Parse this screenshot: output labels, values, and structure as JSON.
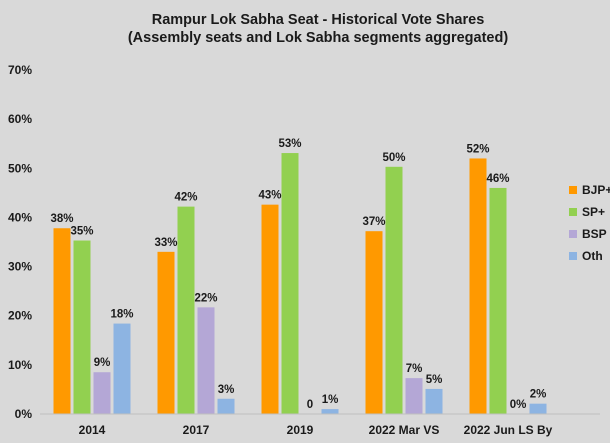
{
  "chart_data": {
    "type": "bar",
    "title": "Rampur Lok Sabha Seat - Historical Vote Shares",
    "subtitle": "(Assembly seats and Lok Sabha segments aggregated)",
    "categories": [
      "2014",
      "2017",
      "2019",
      "2022 Mar VS",
      "2022 Jun LS By"
    ],
    "series": [
      {
        "name": "BJP+",
        "color": "#ff9900",
        "values": [
          37.8,
          33.0,
          42.6,
          37.2,
          52.0
        ],
        "labels": [
          "38%",
          "33%",
          "43%",
          "37%",
          "52%"
        ]
      },
      {
        "name": "SP+",
        "color": "#92d050",
        "values": [
          35.3,
          42.2,
          53.1,
          50.3,
          46.0
        ],
        "labels": [
          "35%",
          "42%",
          "53%",
          "50%",
          "46%"
        ]
      },
      {
        "name": "BSP",
        "color": "#b4a7d6",
        "values": [
          8.5,
          21.7,
          0,
          7.3,
          0
        ],
        "labels": [
          "9%",
          "22%",
          "0",
          "7%",
          "0%"
        ]
      },
      {
        "name": "Oth",
        "color": "#8db4e2",
        "values": [
          18.4,
          3.1,
          1.0,
          5.1,
          2.1
        ],
        "labels": [
          "18%",
          "3%",
          "1%",
          "5%",
          "2%"
        ]
      }
    ],
    "ylim": [
      0,
      70
    ],
    "yticks": [
      "0%",
      "10%",
      "20%",
      "30%",
      "40%",
      "50%",
      "60%",
      "70%"
    ],
    "grid": false,
    "legend_position": "right"
  }
}
